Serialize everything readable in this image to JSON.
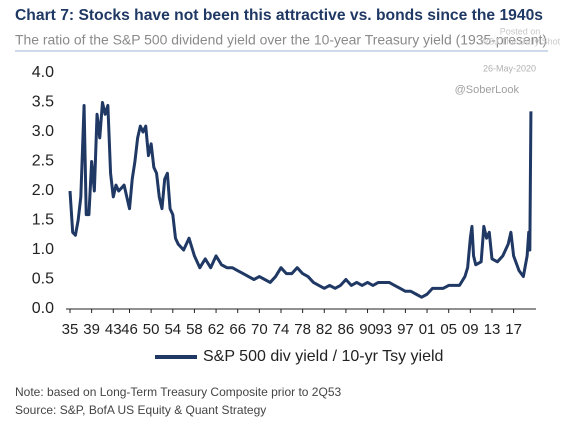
{
  "chart_data": {
    "type": "line",
    "title": "Chart 7: Stocks have not been this attractive vs. bonds since the 1940s",
    "subtitle": "The ratio of the S&P 500 dividend yield over the 10-year Treasury yield (1935-present)",
    "watermark": [
      "Posted on",
      "WSJ The Daily Shot",
      "26-May-2020",
      "@SoberLook"
    ],
    "x": [
      1935,
      1935.5,
      1936,
      1936.5,
      1937,
      1937.6,
      1938,
      1938.5,
      1939,
      1939.5,
      1940,
      1940.5,
      1941,
      1941.5,
      1942,
      1942.5,
      1943,
      1943.5,
      1944,
      1945,
      1945.5,
      1946,
      1946.5,
      1947,
      1947.5,
      1948,
      1948.5,
      1949,
      1949.5,
      1950,
      1950.5,
      1951,
      1951.5,
      1952,
      1952.5,
      1953,
      1953.5,
      1954,
      1954.5,
      1955,
      1956,
      1957,
      1958,
      1959,
      1960,
      1961,
      1962,
      1963,
      1964,
      1965,
      1966,
      1967,
      1968,
      1969,
      1970,
      1971,
      1972,
      1973,
      1974,
      1975,
      1976,
      1977,
      1978,
      1979,
      1980,
      1981,
      1982,
      1983,
      1984,
      1985,
      1986,
      1987,
      1988,
      1989,
      1990,
      1991,
      1992,
      1993,
      1994,
      1995,
      1996,
      1997,
      1998,
      1999,
      2000,
      2001,
      2002,
      2003,
      2004,
      2005,
      2006,
      2007,
      2008,
      2008.5,
      2009,
      2009.3,
      2009.6,
      2010,
      2011,
      2011.5,
      2012,
      2012.5,
      2013,
      2014,
      2015,
      2016,
      2016.5,
      2017,
      2018,
      2018.8,
      2019.5,
      2019.8,
      2020,
      2020.2
    ],
    "series": [
      {
        "name": "S&P 500 div yield / 10-yr Tsy yield",
        "color": "#1f3864",
        "values": [
          2.0,
          1.3,
          1.25,
          1.5,
          1.9,
          3.45,
          1.6,
          1.6,
          2.5,
          2.0,
          3.3,
          2.9,
          3.5,
          3.3,
          3.45,
          2.3,
          1.9,
          2.1,
          2.0,
          2.1,
          1.9,
          1.7,
          2.2,
          2.5,
          2.9,
          3.1,
          3.0,
          3.1,
          2.6,
          2.8,
          2.4,
          2.3,
          1.9,
          1.7,
          2.2,
          2.3,
          1.7,
          1.6,
          1.2,
          1.1,
          1.0,
          1.2,
          0.9,
          0.7,
          0.85,
          0.7,
          0.9,
          0.75,
          0.7,
          0.7,
          0.65,
          0.6,
          0.55,
          0.5,
          0.55,
          0.5,
          0.45,
          0.55,
          0.7,
          0.6,
          0.6,
          0.7,
          0.6,
          0.55,
          0.45,
          0.4,
          0.35,
          0.4,
          0.35,
          0.4,
          0.5,
          0.4,
          0.45,
          0.4,
          0.45,
          0.4,
          0.45,
          0.45,
          0.45,
          0.4,
          0.35,
          0.3,
          0.3,
          0.25,
          0.2,
          0.25,
          0.35,
          0.35,
          0.35,
          0.4,
          0.4,
          0.4,
          0.55,
          0.7,
          1.2,
          1.4,
          0.9,
          0.75,
          0.8,
          1.4,
          1.2,
          1.3,
          0.85,
          0.8,
          0.9,
          1.1,
          1.3,
          0.9,
          0.65,
          0.55,
          0.9,
          1.3,
          1.0,
          3.35
        ]
      }
    ],
    "xlim": [
      1935,
      2020.4
    ],
    "xticks": [
      {
        "value": 1935,
        "label": "35"
      },
      {
        "value": 1939,
        "label": "39"
      },
      {
        "value": 1943,
        "label": "43"
      },
      {
        "value": 1946,
        "label": "46"
      },
      {
        "value": 1950,
        "label": "50"
      },
      {
        "value": 1954,
        "label": "54"
      },
      {
        "value": 1958,
        "label": "58"
      },
      {
        "value": 1962,
        "label": "62"
      },
      {
        "value": 1966,
        "label": "66"
      },
      {
        "value": 1970,
        "label": "70"
      },
      {
        "value": 1974,
        "label": "74"
      },
      {
        "value": 1978,
        "label": "78"
      },
      {
        "value": 1982,
        "label": "82"
      },
      {
        "value": 1986,
        "label": "86"
      },
      {
        "value": 1990,
        "label": "90"
      },
      {
        "value": 1993,
        "label": "93"
      },
      {
        "value": 1997,
        "label": "97"
      },
      {
        "value": 2001,
        "label": "01"
      },
      {
        "value": 2005,
        "label": "05"
      },
      {
        "value": 2009,
        "label": "09"
      },
      {
        "value": 2013,
        "label": "13"
      },
      {
        "value": 2017,
        "label": "17"
      }
    ],
    "ylim": [
      0,
      4
    ],
    "yticks": [
      {
        "value": 0,
        "label": "0.0"
      },
      0.5,
      {
        "value": 1,
        "label": "1.0"
      },
      1.5,
      {
        "value": 2,
        "label": "2.0"
      },
      2.5,
      {
        "value": 3,
        "label": "3.0"
      },
      3.5,
      {
        "value": 4,
        "label": "4.0"
      }
    ],
    "grid": false,
    "legend": "bottom",
    "notes": [
      "Note: based on Long-Term Treasury Composite prior to 2Q53",
      "Source: S&P, BofA US Equity & Quant Strategy"
    ]
  }
}
